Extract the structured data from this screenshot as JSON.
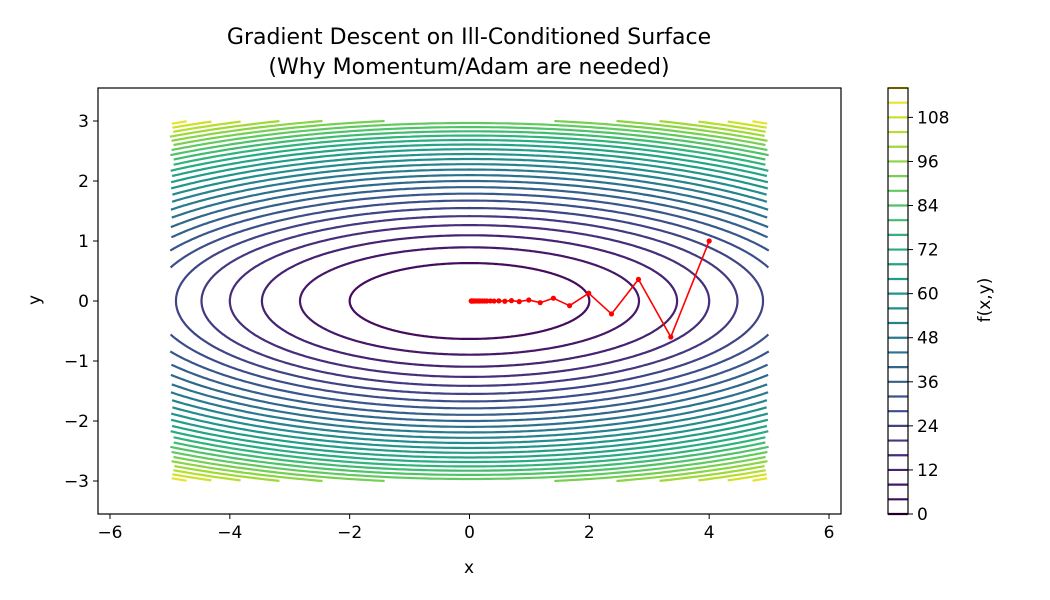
{
  "chart_data": {
    "type": "contour",
    "title": "Gradient Descent on Ill-Conditioned Surface",
    "subtitle": "(Why Momentum/Adam are needed)",
    "xlabel": "x",
    "ylabel": "y",
    "xlim": [
      -6.2,
      6.2
    ],
    "ylim": [
      -3.55,
      3.55
    ],
    "xticks": [
      -6,
      -4,
      -2,
      0,
      2,
      4,
      6
    ],
    "yticks": [
      -3,
      -2,
      -1,
      0,
      1,
      2,
      3
    ],
    "surface": {
      "function": "f(x,y) = x^2 + 10*y^2",
      "domain_x": [
        -5,
        5
      ],
      "domain_y": [
        -3,
        3
      ],
      "levels": [
        0,
        4,
        8,
        12,
        16,
        20,
        24,
        28,
        32,
        36,
        40,
        44,
        48,
        52,
        56,
        60,
        64,
        68,
        72,
        76,
        80,
        84,
        88,
        92,
        96,
        100,
        104,
        108,
        112,
        116
      ],
      "colormap": "viridis"
    },
    "path": {
      "color": "#ff0000",
      "x": [
        4.0,
        3.36,
        2.82,
        2.37,
        1.99,
        1.67,
        1.4,
        1.18,
        0.99,
        0.83,
        0.7,
        0.59,
        0.49,
        0.41,
        0.35,
        0.29,
        0.25,
        0.21,
        0.17,
        0.15,
        0.12,
        0.1,
        0.08,
        0.07,
        0.06,
        0.05,
        0.04,
        0.04,
        0.03,
        0.03
      ],
      "y": [
        1.0,
        -0.6,
        0.36,
        -0.216,
        0.13,
        -0.078,
        0.047,
        -0.028,
        0.017,
        -0.01,
        0.006,
        -0.004,
        0.002,
        -0.001,
        0.001,
        0.0,
        0.0,
        0.0,
        0.0,
        0.0,
        0.0,
        0.0,
        0.0,
        0.0,
        0.0,
        0.0,
        0.0,
        0.0,
        0.0,
        0.0
      ]
    },
    "colorbar": {
      "label": "f(x,y)",
      "ticks": [
        0,
        12,
        24,
        36,
        48,
        60,
        72,
        84,
        96,
        108
      ],
      "range": [
        0,
        116
      ]
    }
  }
}
